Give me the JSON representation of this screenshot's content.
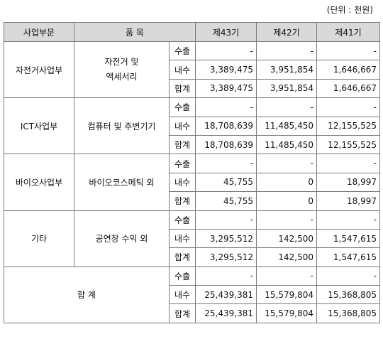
{
  "unit_label": "(단위 : 천원)",
  "headers": {
    "division": "사업부문",
    "product": "품 목",
    "y43": "제43기",
    "y42": "제42기",
    "y41": "제41기"
  },
  "sub_labels": {
    "export": "수출",
    "domestic": "내수",
    "total": "합계"
  },
  "segments": [
    {
      "division": "자전거사업부",
      "product_line1": "자전거 및",
      "product_line2": "액세서리",
      "rows": [
        [
          "-",
          "-",
          "-"
        ],
        [
          "3,389,475",
          "3,951,854",
          "1,646,667"
        ],
        [
          "3,389,475",
          "3,951,854",
          "1,646,667"
        ]
      ]
    },
    {
      "division": "ICT사업부",
      "product_line1": "컴퓨터 및 주변기기",
      "product_line2": "",
      "rows": [
        [
          "-",
          "-",
          "-"
        ],
        [
          "18,708,639",
          "11,485,450",
          "12,155,525"
        ],
        [
          "18,708,639",
          "11,485,450",
          "12,155,525"
        ]
      ]
    },
    {
      "division": "바이오사업부",
      "product_line1": "바이오코스메틱 외",
      "product_line2": "",
      "rows": [
        [
          "-",
          "-",
          "-"
        ],
        [
          "45,755",
          "0",
          "18,997"
        ],
        [
          "45,755",
          "0",
          "18,997"
        ]
      ]
    },
    {
      "division": "기타",
      "product_line1": "공연장 수익 외",
      "product_line2": "",
      "rows": [
        [
          "-",
          "-",
          "-"
        ],
        [
          "3,295,512",
          "142,500",
          "1,547,615"
        ],
        [
          "3,295,512",
          "142,500",
          "1,547,615"
        ]
      ]
    }
  ],
  "grand_total": {
    "label": "합 계",
    "rows": [
      [
        "-",
        "-",
        "-"
      ],
      [
        "25,439,381",
        "15,579,804",
        "15,368,805"
      ],
      [
        "25,439,381",
        "15,579,804",
        "15,368,805"
      ]
    ]
  }
}
